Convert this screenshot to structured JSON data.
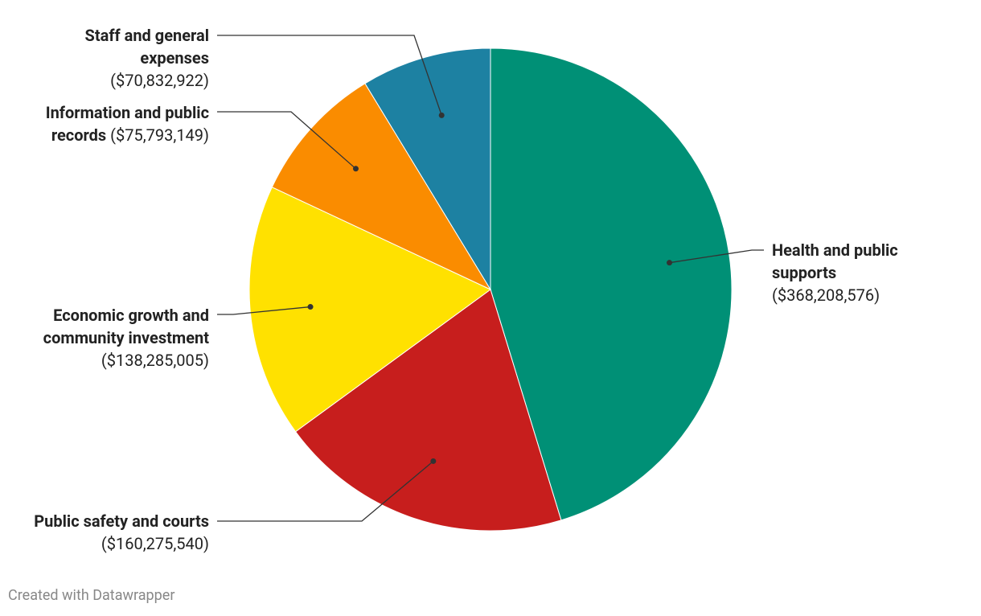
{
  "chart_data": {
    "type": "pie",
    "categories": [
      "Health and public supports",
      "Public safety and courts",
      "Economic growth and community investment",
      "Information and public records",
      "Staff and general expenses"
    ],
    "values": [
      368208576,
      160275540,
      138285005,
      75793149,
      70832922
    ],
    "value_labels": [
      "($368,208,576)",
      "($160,275,540)",
      "($138,285,005)",
      "($75,793,149)",
      "($70,832,922)"
    ],
    "colors": [
      "#009076",
      "#c71e1d",
      "#ffe100",
      "#fa8c00",
      "#1d81a2"
    ],
    "source": "Created with Datawrapper"
  }
}
